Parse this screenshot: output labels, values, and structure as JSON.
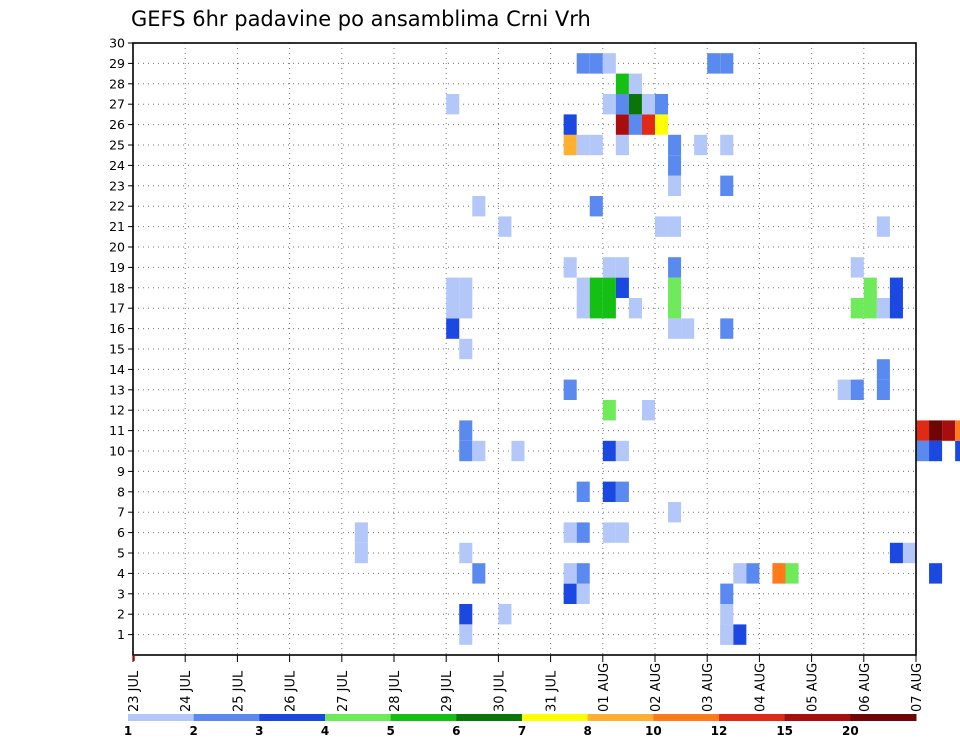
{
  "chart_data": {
    "type": "heatmap",
    "title": "GEFS 6hr padavine po ansamblima Crni Vrh",
    "xlabel": "",
    "ylabel": "",
    "y_ticks": [
      1,
      2,
      3,
      4,
      5,
      6,
      7,
      8,
      9,
      10,
      11,
      12,
      13,
      14,
      15,
      16,
      17,
      18,
      19,
      20,
      21,
      22,
      23,
      24,
      25,
      26,
      27,
      28,
      29,
      30
    ],
    "x_ticks": [
      "23 JUL",
      "24 JUL",
      "25 JUL",
      "26 JUL",
      "27 JUL",
      "28 JUL",
      "29 JUL",
      "30 JUL",
      "31 JUL",
      "01 AUG",
      "02 AUG",
      "03 AUG",
      "04 AUG",
      "05 AUG",
      "06 AUG",
      "07 AUG"
    ],
    "x_unit": "days since 23 JUL 00Z, 6-hourly steps",
    "grid": true,
    "colorbar": {
      "labels": [
        "1",
        "2",
        "3",
        "4",
        "5",
        "6",
        "7",
        "8",
        "10",
        "12",
        "15",
        "20"
      ],
      "colors": [
        "#b3c8f8",
        "#5a8af0",
        "#1a48e0",
        "#6fea5a",
        "#14c014",
        "#0a760a",
        "#ffff00",
        "#ffb030",
        "#ff7a1a",
        "#e02a14",
        "#a80e0e",
        "#6e0606"
      ]
    },
    "cells": [
      [
        11.25,
        1,
        1
      ],
      [
        11.5,
        1,
        3
      ],
      [
        6.5,
        4,
        2
      ],
      [
        6.25,
        2,
        3
      ],
      [
        6.25,
        1,
        1
      ],
      [
        7.0,
        2,
        1
      ],
      [
        11.25,
        1,
        1
      ],
      [
        11.25,
        2,
        1
      ],
      [
        11.25,
        3,
        2
      ],
      [
        8.25,
        3,
        3
      ],
      [
        8.5,
        3,
        13
      ],
      [
        8.25,
        4,
        1
      ],
      [
        8.5,
        4,
        2
      ],
      [
        11.5,
        4,
        1
      ],
      [
        11.75,
        4,
        2
      ],
      [
        12.25,
        4,
        1
      ],
      [
        12.25,
        4,
        9
      ],
      [
        12.5,
        4,
        4
      ],
      [
        15.25,
        4,
        3
      ],
      [
        4.25,
        5,
        1
      ],
      [
        6.25,
        5,
        1
      ],
      [
        14.5,
        5,
        3
      ],
      [
        14.75,
        5,
        1
      ],
      [
        4.25,
        6,
        1
      ],
      [
        8.25,
        6,
        1
      ],
      [
        8.5,
        6,
        2
      ],
      [
        9.0,
        6,
        1
      ],
      [
        9.25,
        6,
        1
      ],
      [
        10.25,
        7,
        1
      ],
      [
        8.5,
        8,
        2
      ],
      [
        9.0,
        8,
        3
      ],
      [
        9.25,
        8,
        2
      ],
      [
        16.0,
        9,
        1
      ],
      [
        16.25,
        9,
        1
      ],
      [
        6.25,
        10,
        2
      ],
      [
        6.5,
        10,
        1
      ],
      [
        7.25,
        10,
        1
      ],
      [
        9.0,
        10,
        3
      ],
      [
        9.25,
        10,
        1
      ],
      [
        15.0,
        10,
        2
      ],
      [
        15.25,
        10,
        3
      ],
      [
        15.75,
        10,
        3
      ],
      [
        6.25,
        11,
        2
      ],
      [
        15.0,
        11,
        10
      ],
      [
        15.25,
        11,
        12
      ],
      [
        15.5,
        11,
        11
      ],
      [
        15.75,
        11,
        9
      ],
      [
        16.0,
        11,
        2
      ],
      [
        16.25,
        11,
        1
      ],
      [
        9.0,
        12,
        4
      ],
      [
        9.75,
        12,
        1
      ],
      [
        16.0,
        12,
        3
      ],
      [
        8.25,
        13,
        2
      ],
      [
        13.5,
        13,
        1
      ],
      [
        13.75,
        13,
        2
      ],
      [
        14.25,
        13,
        2
      ],
      [
        16.75,
        13,
        2
      ],
      [
        17.0,
        13,
        4
      ],
      [
        14.25,
        14,
        2
      ],
      [
        17.75,
        14,
        1
      ],
      [
        6.25,
        15,
        1
      ],
      [
        16.25,
        15,
        1
      ],
      [
        17.0,
        15,
        1
      ],
      [
        18.0,
        15,
        2
      ],
      [
        6.0,
        16,
        3
      ],
      [
        10.25,
        16,
        1
      ],
      [
        10.5,
        16,
        1
      ],
      [
        11.25,
        16,
        2
      ],
      [
        17.0,
        16,
        1
      ],
      [
        6.0,
        17,
        1
      ],
      [
        6.25,
        17,
        1
      ],
      [
        8.5,
        17,
        1
      ],
      [
        9.0,
        17,
        1
      ],
      [
        9.5,
        17,
        1
      ],
      [
        10.25,
        17,
        4
      ],
      [
        13.75,
        17,
        4
      ],
      [
        14.0,
        17,
        4
      ],
      [
        14.25,
        17,
        1
      ],
      [
        14.5,
        17,
        3
      ],
      [
        17.25,
        17,
        1
      ],
      [
        17.75,
        17,
        2
      ],
      [
        6.0,
        18,
        1
      ],
      [
        6.25,
        18,
        1
      ],
      [
        8.5,
        18,
        1
      ],
      [
        9.0,
        18,
        1
      ],
      [
        9.25,
        18,
        3
      ],
      [
        10.25,
        18,
        4
      ],
      [
        8.75,
        17,
        5
      ],
      [
        9.0,
        17,
        5
      ],
      [
        8.75,
        18,
        5
      ],
      [
        9.0,
        18,
        5
      ],
      [
        14.0,
        18,
        4
      ],
      [
        14.5,
        18,
        3
      ],
      [
        17.25,
        18,
        1
      ],
      [
        17.75,
        18,
        2
      ],
      [
        18.0,
        17,
        8
      ],
      [
        18.0,
        18,
        8
      ],
      [
        8.25,
        19,
        1
      ],
      [
        9.0,
        19,
        1
      ],
      [
        9.25,
        19,
        1
      ],
      [
        10.25,
        19,
        2
      ],
      [
        13.75,
        19,
        1
      ],
      [
        16.0,
        19,
        1
      ],
      [
        16.25,
        19,
        1
      ],
      [
        7.0,
        21,
        1
      ],
      [
        10.0,
        21,
        1
      ],
      [
        10.25,
        21,
        1
      ],
      [
        14.25,
        21,
        1
      ],
      [
        16.0,
        21,
        2
      ],
      [
        16.25,
        21,
        1
      ],
      [
        6.5,
        22,
        1
      ],
      [
        8.75,
        22,
        2
      ],
      [
        10.25,
        23,
        1
      ],
      [
        11.25,
        23,
        2
      ],
      [
        10.25,
        24,
        2
      ],
      [
        8.25,
        25,
        8
      ],
      [
        8.5,
        25,
        1
      ],
      [
        8.75,
        25,
        1
      ],
      [
        9.25,
        25,
        1
      ],
      [
        10.25,
        25,
        2
      ],
      [
        10.75,
        25,
        1
      ],
      [
        11.25,
        25,
        1
      ],
      [
        17.25,
        25,
        1
      ],
      [
        18.0,
        25,
        2
      ],
      [
        8.25,
        26,
        3
      ],
      [
        9.25,
        26,
        11
      ],
      [
        9.5,
        26,
        2
      ],
      [
        9.75,
        26,
        10
      ],
      [
        10.0,
        26,
        7
      ],
      [
        17.0,
        26,
        1
      ],
      [
        17.5,
        26,
        5
      ],
      [
        18.0,
        26,
        4
      ],
      [
        6.0,
        27,
        1
      ],
      [
        9.0,
        27,
        1
      ],
      [
        9.25,
        27,
        2
      ],
      [
        9.5,
        27,
        6
      ],
      [
        9.75,
        27,
        1
      ],
      [
        10.0,
        27,
        2
      ],
      [
        17.25,
        27,
        2
      ],
      [
        9.25,
        28,
        5
      ],
      [
        9.5,
        28,
        1
      ],
      [
        8.5,
        29,
        2
      ],
      [
        8.75,
        29,
        2
      ],
      [
        9.0,
        29,
        1
      ],
      [
        11.0,
        29,
        2
      ],
      [
        11.25,
        29,
        2
      ]
    ]
  }
}
